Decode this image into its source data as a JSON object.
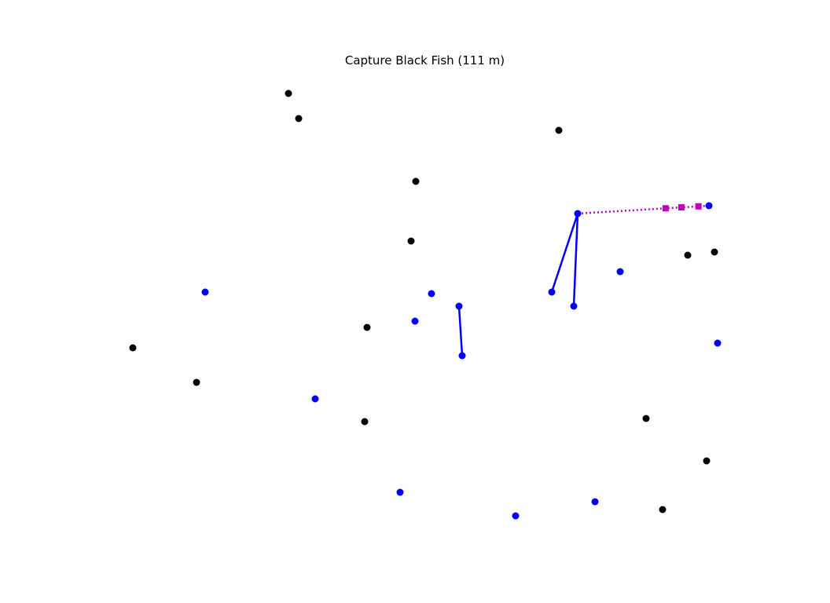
{
  "game": {
    "title": "Capture Black Fish (111 m)"
  },
  "colors": {
    "black_fish": "#000000",
    "blue_fish": "#0000ff",
    "link": "#0000ff",
    "trail": "#bf00bf",
    "background": "#ffffff"
  },
  "black_fish": [
    {
      "id": "b1"
    },
    {
      "id": "b2"
    },
    {
      "id": "b3"
    },
    {
      "id": "b4"
    },
    {
      "id": "b5"
    },
    {
      "id": "b6"
    },
    {
      "id": "b7"
    },
    {
      "id": "b8"
    },
    {
      "id": "b9"
    },
    {
      "id": "b10"
    },
    {
      "id": "b11"
    },
    {
      "id": "b12"
    },
    {
      "id": "b13"
    },
    {
      "id": "b14"
    }
  ],
  "blue_fish": [
    {
      "id": "u1"
    },
    {
      "id": "u2"
    },
    {
      "id": "u3"
    },
    {
      "id": "u4"
    },
    {
      "id": "u5"
    },
    {
      "id": "u6"
    },
    {
      "id": "u7"
    },
    {
      "id": "u8"
    },
    {
      "id": "u9"
    },
    {
      "id": "u10"
    },
    {
      "id": "u11"
    },
    {
      "id": "u12"
    },
    {
      "id": "u13"
    },
    {
      "id": "u14"
    },
    {
      "id": "u15"
    }
  ],
  "links": [
    {
      "from": "u7",
      "to": "u8"
    },
    {
      "from": "u9",
      "to": "u11"
    },
    {
      "from": "u9",
      "to": "u10"
    }
  ],
  "trail": {
    "from": "u9",
    "to": "u12",
    "markers": 3
  }
}
